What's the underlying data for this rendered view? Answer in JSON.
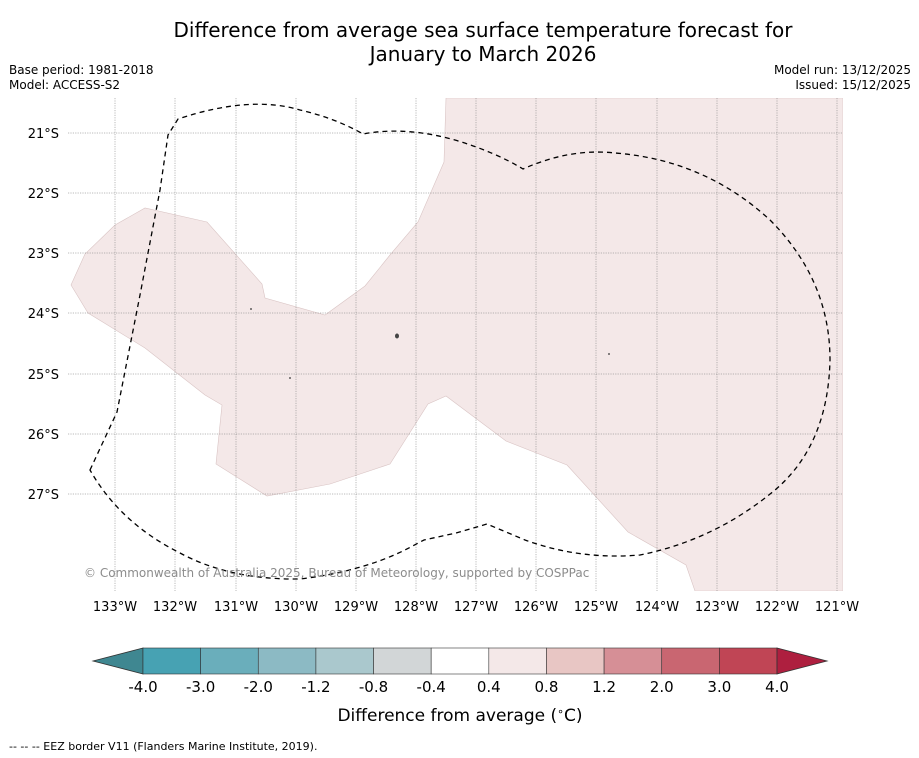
{
  "title": {
    "line1": "Difference from average sea surface temperature forecast for",
    "line2": "January to March 2026"
  },
  "meta_left": {
    "base_period": "Base period: 1981-2018",
    "model": "Model: ACCESS-S2"
  },
  "meta_right": {
    "model_run": "Model run: 13/12/2025",
    "issued": "Issued: 15/12/2025"
  },
  "map": {
    "lat_labels": [
      "21°S",
      "22°S",
      "23°S",
      "24°S",
      "25°S",
      "26°S",
      "27°S"
    ],
    "lon_labels": [
      "133°W",
      "132°W",
      "131°W",
      "130°W",
      "129°W",
      "128°W",
      "127°W",
      "126°W",
      "125°W",
      "124°W",
      "123°W",
      "122°W",
      "121°W"
    ],
    "anomaly_fill_color": "#f4e8e8",
    "anomaly_class": "0.4 to 0.8",
    "copyright": "© Commonwealth of Australia 2025, Bureau of Meteorology, supported by COSPPac"
  },
  "colorbar": {
    "tick_labels": [
      "-4.0",
      "-3.0",
      "-2.0",
      "-1.2",
      "-0.8",
      "-0.4",
      "0.4",
      "0.8",
      "1.2",
      "2.0",
      "3.0",
      "4.0"
    ],
    "colors": [
      "#47a2b3",
      "#6aaebb",
      "#8cbac4",
      "#aac8cd",
      "#d2d6d7",
      "#ffffff",
      "#f4e8e8",
      "#e8c6c4",
      "#d68f96",
      "#c96671",
      "#c04555"
    ],
    "under_color": "#3f8791",
    "over_color": "#ae1f3f",
    "label": "Difference from average (",
    "unit_symbol": "∘",
    "unit_letter": "C)"
  },
  "footnote": "--  --  -- EEZ border V11 (Flanders Marine Institute, 2019)."
}
